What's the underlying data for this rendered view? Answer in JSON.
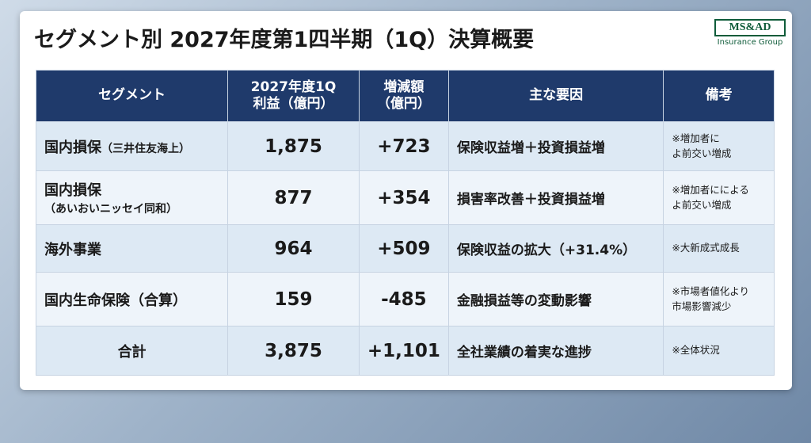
{
  "header": {
    "title": "セグメント別 2027年度第1四半期（1Q）決算概要",
    "logo": "MS&AD",
    "logo_sub": "Insurance Group"
  },
  "table": {
    "columns": [
      "セグメント",
      "2027年度1Q\n利益（億円）",
      "増減額\n（億円）",
      "主な要因",
      "備考"
    ],
    "rows": [
      [
        {
          "main": "国内損保",
          "sub": "（三井住友海上）"
        },
        "1,875",
        "+723",
        "保険収益増＋投資損益増",
        "※増加者に\nよ前交い増成"
      ],
      [
        {
          "main": "国内損保",
          "sub": "\n（あいおいニッセイ同和）"
        },
        "877",
        "+354",
        "損害率改善＋投資損益増",
        "※増加者にによる\nよ前交い増成"
      ],
      [
        {
          "main": "海外事業"
        },
        "964",
        "+509",
        "保険収益の拡大（+31.4%）",
        "※大新成式成長"
      ],
      [
        {
          "main": "国内生命保険（合算）"
        },
        "159",
        "-485",
        "金融損益等の変動影響",
        "※市場者値化より\n市場影響減少"
      ],
      [
        {
          "main": "合計"
        },
        "3,875",
        "+1,101",
        "全社業績の着実な進捗",
        "※全体状況"
      ]
    ]
  }
}
